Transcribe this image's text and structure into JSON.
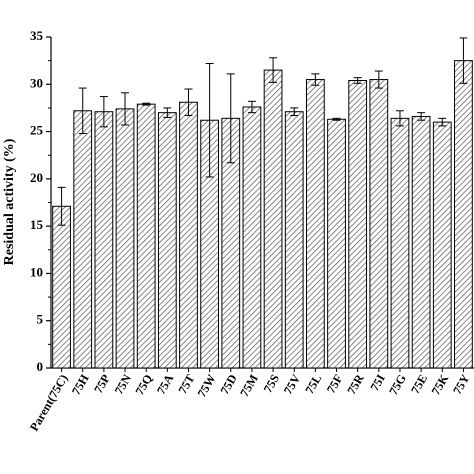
{
  "chart_data": {
    "type": "bar",
    "ylabel": "Residual activity (%)",
    "ylim": [
      0,
      35
    ],
    "yticks": [
      0,
      5,
      10,
      15,
      20,
      25,
      30,
      35
    ],
    "grid": false,
    "legend": "none",
    "bar_fill": "#ffffff",
    "hatch_color": "#555555",
    "categories": [
      "Parent(75C)",
      "75H",
      "75P",
      "75N",
      "75Q",
      "75A",
      "75T",
      "75W",
      "75D",
      "75M",
      "75S",
      "75V",
      "75L",
      "75F",
      "75R",
      "75I",
      "75G",
      "75E",
      "75K",
      "75Y"
    ],
    "values": [
      17.1,
      27.2,
      27.1,
      27.4,
      27.9,
      27.0,
      28.1,
      26.2,
      26.4,
      27.6,
      31.5,
      27.1,
      30.5,
      26.3,
      30.4,
      30.5,
      26.4,
      26.6,
      26.0,
      32.5
    ],
    "errors": [
      2.0,
      2.4,
      1.6,
      1.7,
      0.1,
      0.5,
      1.4,
      6.0,
      4.7,
      0.6,
      1.3,
      0.4,
      0.6,
      0.1,
      0.3,
      0.9,
      0.8,
      0.4,
      0.4,
      2.4
    ]
  }
}
